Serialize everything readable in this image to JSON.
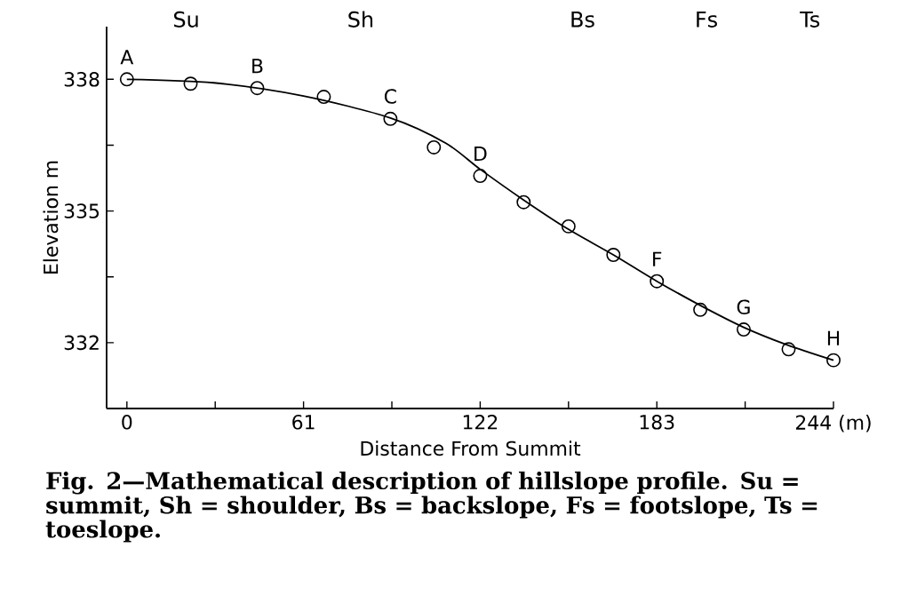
{
  "chart_data": {
    "type": "scatter",
    "xlabel": "Distance From Summit",
    "ylabel": "Elevation  m",
    "xlim": [
      -7,
      244
    ],
    "ylim": [
      330.5,
      339.2
    ],
    "xticks": [
      0,
      {
        "value": 30.5,
        "label": null
      },
      61,
      {
        "value": 91.5,
        "label": null
      },
      122,
      {
        "value": 152.5,
        "label": null
      },
      183,
      {
        "value": 213.5,
        "label": null
      },
      {
        "value": 244,
        "label": "244 (m)"
      }
    ],
    "yticks": [
      {
        "value": 333.5,
        "label": null
      },
      332,
      {
        "value": 336.5,
        "label": null
      },
      335,
      338
    ],
    "series": [
      {
        "marker": "circle",
        "color": "#000000",
        "x": [
          0,
          22,
          45,
          68,
          91,
          106,
          122,
          137,
          152.5,
          168,
          183,
          198,
          213,
          228.5,
          244
        ],
        "values": [
          338.0,
          337.9,
          337.8,
          337.6,
          337.1,
          336.45,
          335.8,
          335.2,
          334.65,
          334.0,
          333.4,
          332.75,
          332.3,
          331.85,
          331.6
        ]
      },
      {
        "type": "line",
        "marker": "none",
        "line_style": "solid",
        "color": "#000000",
        "x": [
          0,
          30,
          61,
          91,
          110,
          122,
          137,
          152,
          168,
          183,
          198,
          213,
          228,
          244
        ],
        "values": [
          338.0,
          337.92,
          337.62,
          337.12,
          336.55,
          335.95,
          335.25,
          334.6,
          334.0,
          333.4,
          332.85,
          332.35,
          331.95,
          331.6
        ]
      }
    ],
    "annotations": [
      {
        "text": "A",
        "x": 0,
        "y": 338.0
      },
      {
        "text": "B",
        "x": 45,
        "y": 337.8
      },
      {
        "text": "C",
        "x": 91,
        "y": 337.1
      },
      {
        "text": "D",
        "x": 122,
        "y": 335.8
      },
      {
        "text": "F",
        "x": 183,
        "y": 333.4
      },
      {
        "text": "G",
        "x": 213,
        "y": 332.3
      },
      {
        "text": "H",
        "x": 244,
        "y": 331.6
      },
      "Su",
      "Sh",
      "Bs",
      "Fs",
      "Ts",
      "**Fig. 2—Mathematical description of hillslope profile. Su = summit, Sh = shoulder, Bs = backslope, Fs = footslope, Ts = toeslope.**"
    ]
  }
}
